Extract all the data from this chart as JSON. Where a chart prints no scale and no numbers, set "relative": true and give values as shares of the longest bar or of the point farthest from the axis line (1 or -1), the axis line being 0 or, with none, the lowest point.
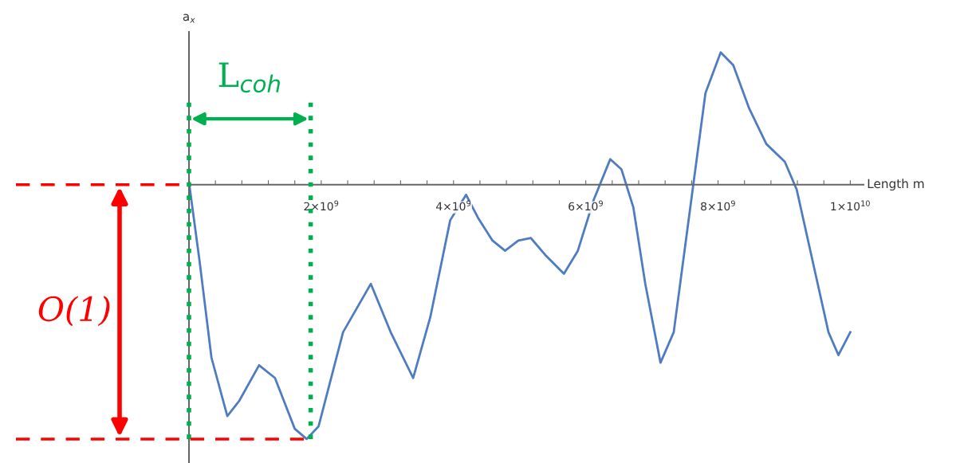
{
  "chart_data": {
    "type": "line",
    "relative": true,
    "xlabel": "Length m",
    "ylabel": "a$_{x}$",
    "x": [
      0,
      160000000.0,
      340000000.0,
      580000000.0,
      760000000.0,
      1060000000.0,
      1300000000.0,
      1600000000.0,
      1780000000.0,
      1960000000.0,
      2330000000.0,
      2750000000.0,
      3050000000.0,
      3390000000.0,
      3650000000.0,
      3950000000.0,
      4190000000.0,
      4370000000.0,
      4590000000.0,
      4780000000.0,
      4980000000.0,
      5170000000.0,
      5400000000.0,
      5670000000.0,
      5880000000.0,
      6120000000.0,
      6370000000.0,
      6540000000.0,
      6720000000.0,
      6900000000.0,
      7130000000.0,
      7330000000.0,
      7570000000.0,
      7810000000.0,
      8040000000.0,
      8230000000.0,
      8470000000.0,
      8730000000.0,
      9010000000.0,
      9190000000.0,
      9430000000.0,
      9670000000.0,
      9820000000.0,
      10000000000.0
    ],
    "series": [
      {
        "color": "#4f7cc0",
        "values": [
          0.01,
          -0.3,
          -0.68,
          -0.91,
          -0.85,
          -0.71,
          -0.76,
          -0.96,
          -1.0,
          -0.95,
          -0.58,
          -0.39,
          -0.58,
          -0.76,
          -0.52,
          -0.14,
          -0.04,
          -0.13,
          -0.22,
          -0.26,
          -0.22,
          -0.21,
          -0.28,
          -0.35,
          -0.26,
          -0.06,
          0.1,
          0.06,
          -0.09,
          -0.39,
          -0.7,
          -0.58,
          -0.11,
          0.36,
          0.52,
          0.47,
          0.3,
          0.16,
          0.09,
          -0.02,
          -0.3,
          -0.58,
          -0.67,
          -0.58
        ]
      }
    ],
    "xlim": [
      0,
      10200000000.0
    ],
    "xticks": [
      {
        "value": 400000000.0,
        "label": null
      },
      {
        "value": 800000000.0,
        "label": null
      },
      {
        "value": 1200000000.0,
        "label": null
      },
      {
        "value": 1600000000.0,
        "label": null
      },
      {
        "value": 2000000000.0,
        "label": "2×10$^{9}$"
      },
      {
        "value": 2400000000.0,
        "label": null
      },
      {
        "value": 2800000000.0,
        "label": null
      },
      {
        "value": 3200000000.0,
        "label": null
      },
      {
        "value": 3600000000.0,
        "label": null
      },
      {
        "value": 4000000000.0,
        "label": "4×10$^{9}$"
      },
      {
        "value": 4400000000.0,
        "label": null
      },
      {
        "value": 4800000000.0,
        "label": null
      },
      {
        "value": 5200000000.0,
        "label": null
      },
      {
        "value": 5600000000.0,
        "label": null
      },
      {
        "value": 6000000000.0,
        "label": "6×10$^{9}$"
      },
      {
        "value": 6400000000.0,
        "label": null
      },
      {
        "value": 6800000000.0,
        "label": null
      },
      {
        "value": 7200000000.0,
        "label": null
      },
      {
        "value": 7600000000.0,
        "label": null
      },
      {
        "value": 8000000000.0,
        "label": "8×10$^{9}$"
      },
      {
        "value": 8400000000.0,
        "label": null
      },
      {
        "value": 8800000000.0,
        "label": null
      },
      {
        "value": 9200000000.0,
        "label": null
      },
      {
        "value": 9600000000.0,
        "label": null
      },
      {
        "value": 10000000000.0,
        "label": "1×10$^{10}$"
      }
    ],
    "tick_labels": "x",
    "grid": false,
    "legend": false,
    "marker": "none",
    "line_style": "solid",
    "ref_lines": [
      {
        "axis": "x",
        "value": 0,
        "color": "#00b050",
        "line_style": "dotted"
      },
      {
        "axis": "x",
        "value": 1840000000.0,
        "color": "#00b050",
        "line_style": "dotted"
      },
      {
        "axis": "y",
        "value": -1,
        "color": "#ff0000",
        "line_style": "dashed"
      }
    ],
    "annotations": [
      "L$_{coh}$",
      "O(1)"
    ]
  }
}
